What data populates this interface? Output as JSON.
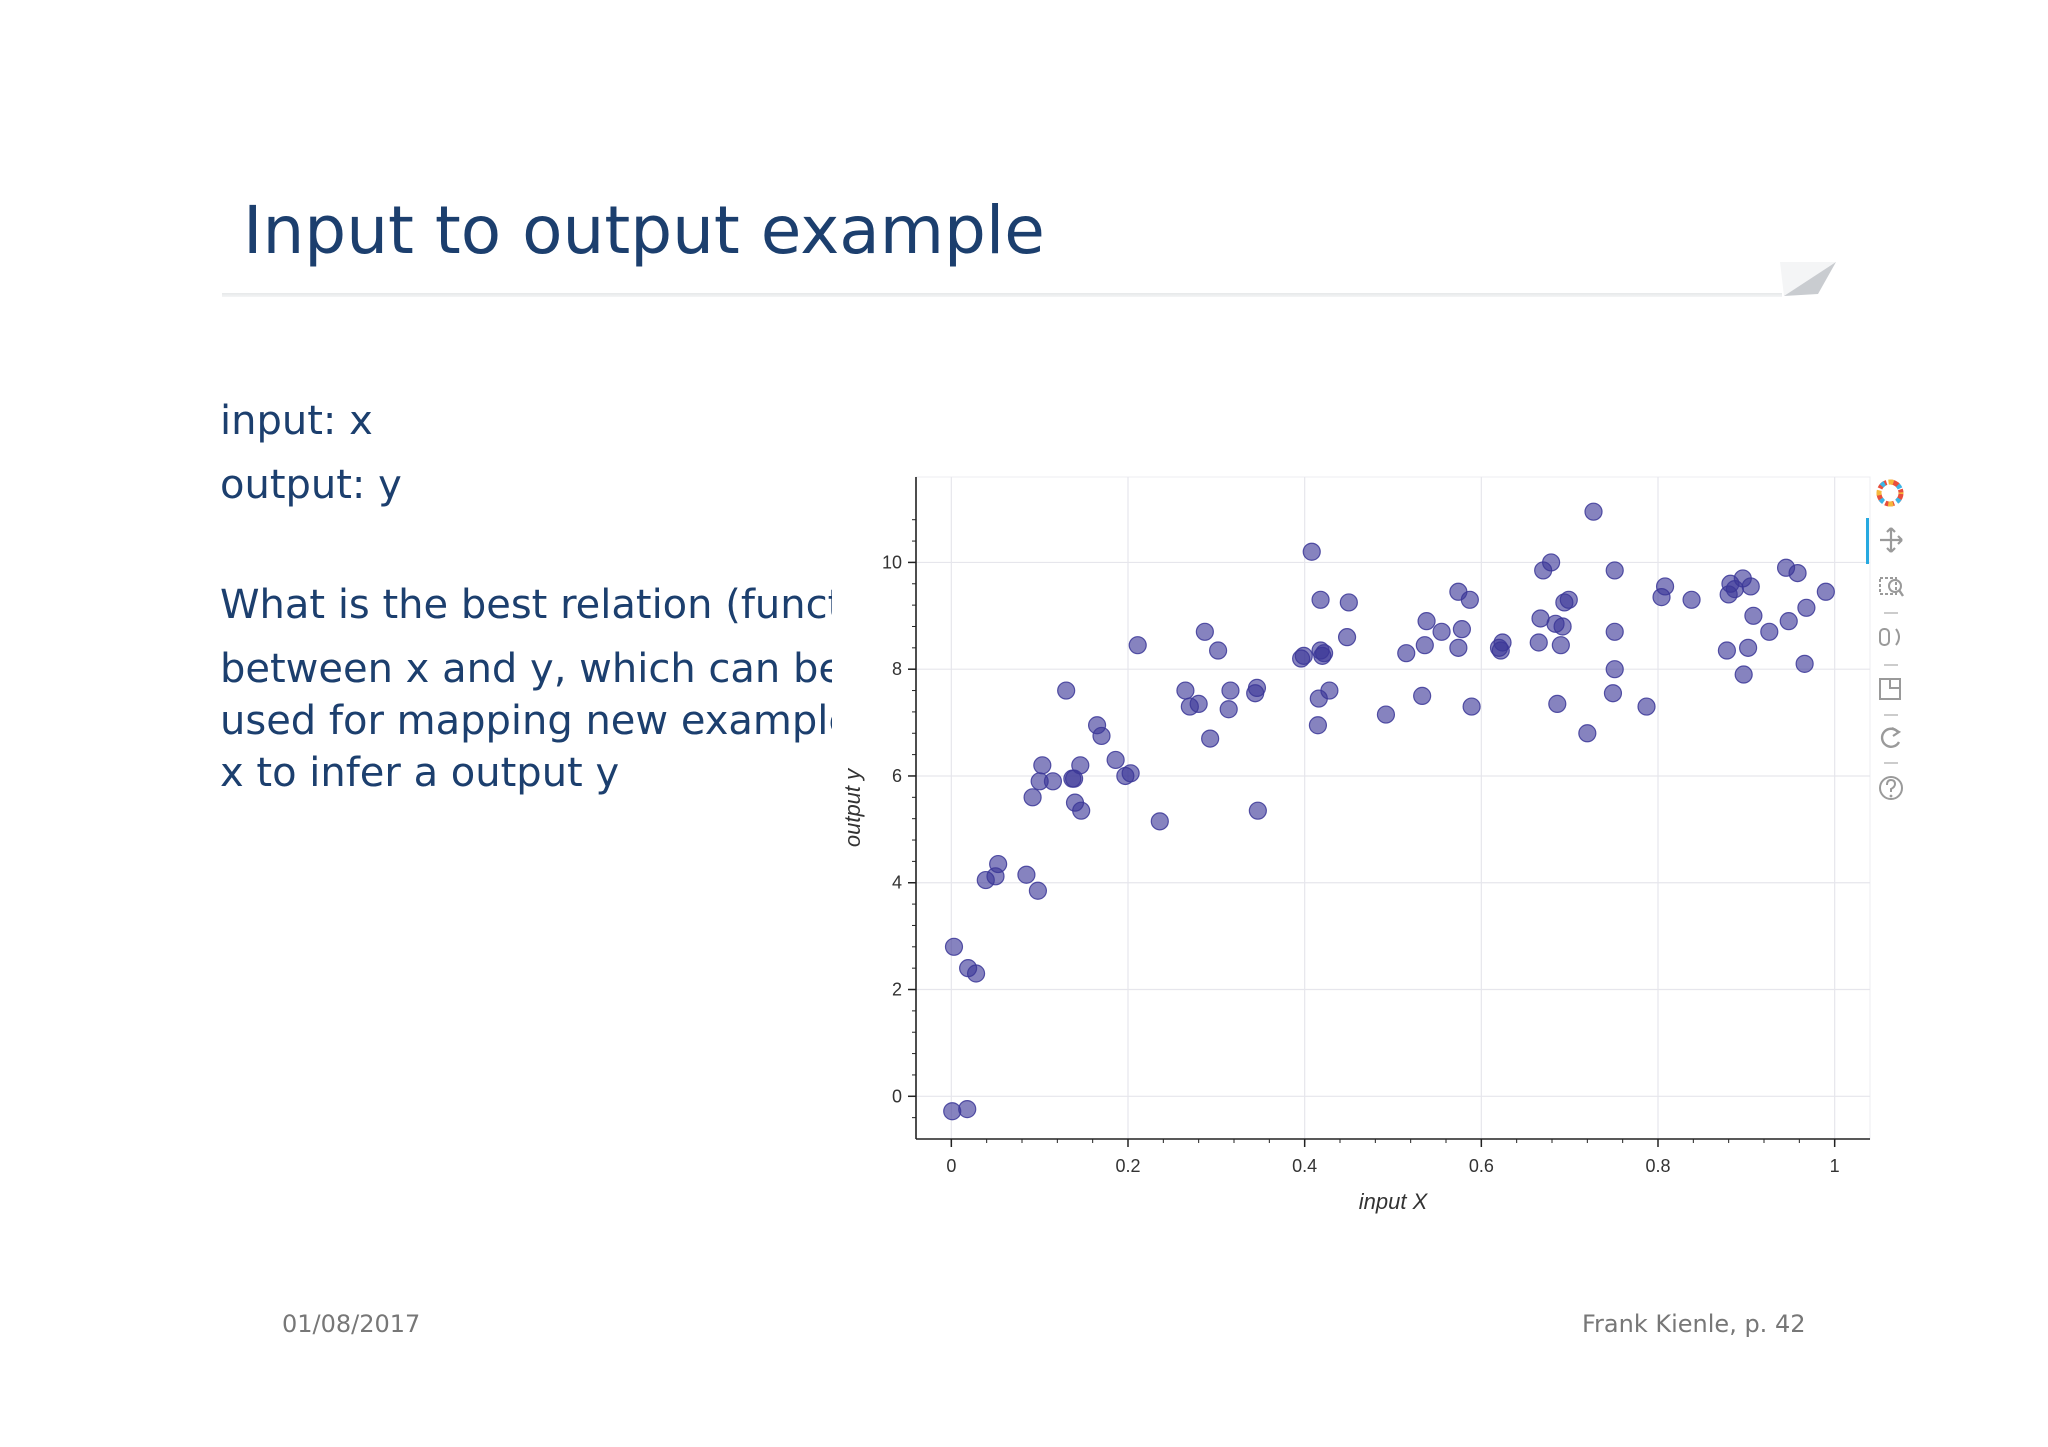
{
  "slide": {
    "title": "Input to output example",
    "line_input": "input: x",
    "line_output": "output: y",
    "question_lines": [
      "What is the best relation (functio",
      "between x and y,  which can be",
      "used for mapping new examples",
      "x to infer a output y"
    ],
    "footer_date": "01/08/2017",
    "footer_author": "Frank Kienle, p. 42"
  },
  "colors": {
    "title": "#1c3f6e",
    "point": "#3b3798",
    "grid": "#e6e6ec",
    "toolbar_active": "#26a9e0"
  },
  "toolbar": {
    "icons": [
      "bokeh-logo-icon",
      "pan-icon",
      "box-zoom-icon",
      "wheel-zoom-icon",
      "save-icon",
      "reset-icon",
      "help-icon"
    ]
  },
  "chart_data": {
    "type": "scatter",
    "xlabel": "input X",
    "ylabel": "output y",
    "xlim": [
      -0.04,
      1.04
    ],
    "ylim": [
      -0.8,
      11.6
    ],
    "x_ticks": [
      0,
      0.2,
      0.4,
      0.6,
      0.8,
      1
    ],
    "x_tick_labels": [
      "0",
      "0.2",
      "0.4",
      "0.6",
      "0.8",
      "1"
    ],
    "y_ticks": [
      0,
      2,
      4,
      6,
      8,
      10
    ],
    "y_tick_labels": [
      "0",
      "2",
      "4",
      "6",
      "8",
      "10"
    ],
    "grid": true,
    "points": [
      [
        0.001,
        -0.28
      ],
      [
        0.018,
        -0.24
      ],
      [
        0.003,
        2.8
      ],
      [
        0.019,
        2.4
      ],
      [
        0.028,
        2.3
      ],
      [
        0.039,
        4.05
      ],
      [
        0.05,
        4.12
      ],
      [
        0.053,
        4.35
      ],
      [
        0.085,
        4.15
      ],
      [
        0.098,
        3.85
      ],
      [
        0.092,
        5.6
      ],
      [
        0.1,
        5.9
      ],
      [
        0.103,
        6.2
      ],
      [
        0.115,
        5.9
      ],
      [
        0.13,
        7.6
      ],
      [
        0.137,
        5.95
      ],
      [
        0.139,
        5.95
      ],
      [
        0.14,
        5.5
      ],
      [
        0.146,
        6.2
      ],
      [
        0.147,
        5.35
      ],
      [
        0.165,
        6.95
      ],
      [
        0.17,
        6.75
      ],
      [
        0.186,
        6.3
      ],
      [
        0.197,
        6.0
      ],
      [
        0.203,
        6.05
      ],
      [
        0.211,
        8.45
      ],
      [
        0.236,
        5.15
      ],
      [
        0.265,
        7.6
      ],
      [
        0.27,
        7.3
      ],
      [
        0.28,
        7.35
      ],
      [
        0.287,
        8.7
      ],
      [
        0.293,
        6.7
      ],
      [
        0.302,
        8.35
      ],
      [
        0.314,
        7.25
      ],
      [
        0.316,
        7.6
      ],
      [
        0.344,
        7.55
      ],
      [
        0.346,
        7.65
      ],
      [
        0.347,
        5.35
      ],
      [
        0.396,
        8.2
      ],
      [
        0.399,
        8.25
      ],
      [
        0.408,
        10.2
      ],
      [
        0.415,
        6.95
      ],
      [
        0.416,
        7.45
      ],
      [
        0.418,
        9.3
      ],
      [
        0.418,
        8.35
      ],
      [
        0.42,
        8.25
      ],
      [
        0.422,
        8.3
      ],
      [
        0.428,
        7.6
      ],
      [
        0.448,
        8.6
      ],
      [
        0.45,
        9.25
      ],
      [
        0.492,
        7.15
      ],
      [
        0.515,
        8.3
      ],
      [
        0.533,
        7.5
      ],
      [
        0.538,
        8.9
      ],
      [
        0.536,
        8.45
      ],
      [
        0.555,
        8.7
      ],
      [
        0.574,
        9.45
      ],
      [
        0.574,
        8.4
      ],
      [
        0.578,
        8.75
      ],
      [
        0.587,
        9.3
      ],
      [
        0.589,
        7.3
      ],
      [
        0.62,
        8.4
      ],
      [
        0.622,
        8.35
      ],
      [
        0.624,
        8.5
      ],
      [
        0.665,
        8.5
      ],
      [
        0.667,
        8.95
      ],
      [
        0.67,
        9.85
      ],
      [
        0.679,
        10.0
      ],
      [
        0.684,
        8.85
      ],
      [
        0.686,
        7.35
      ],
      [
        0.69,
        8.45
      ],
      [
        0.692,
        8.8
      ],
      [
        0.694,
        9.25
      ],
      [
        0.699,
        9.3
      ],
      [
        0.72,
        6.8
      ],
      [
        0.727,
        10.95
      ],
      [
        0.749,
        7.55
      ],
      [
        0.751,
        8.0
      ],
      [
        0.751,
        8.7
      ],
      [
        0.751,
        9.85
      ],
      [
        0.787,
        7.3
      ],
      [
        0.804,
        9.35
      ],
      [
        0.808,
        9.55
      ],
      [
        0.838,
        9.3
      ],
      [
        0.878,
        8.35
      ],
      [
        0.88,
        9.4
      ],
      [
        0.882,
        9.6
      ],
      [
        0.887,
        9.5
      ],
      [
        0.896,
        9.7
      ],
      [
        0.897,
        7.9
      ],
      [
        0.902,
        8.4
      ],
      [
        0.905,
        9.55
      ],
      [
        0.908,
        9.0
      ],
      [
        0.926,
        8.7
      ],
      [
        0.945,
        9.9
      ],
      [
        0.948,
        8.9
      ],
      [
        0.958,
        9.8
      ],
      [
        0.966,
        8.1
      ],
      [
        0.968,
        9.15
      ],
      [
        0.99,
        9.45
      ]
    ]
  }
}
